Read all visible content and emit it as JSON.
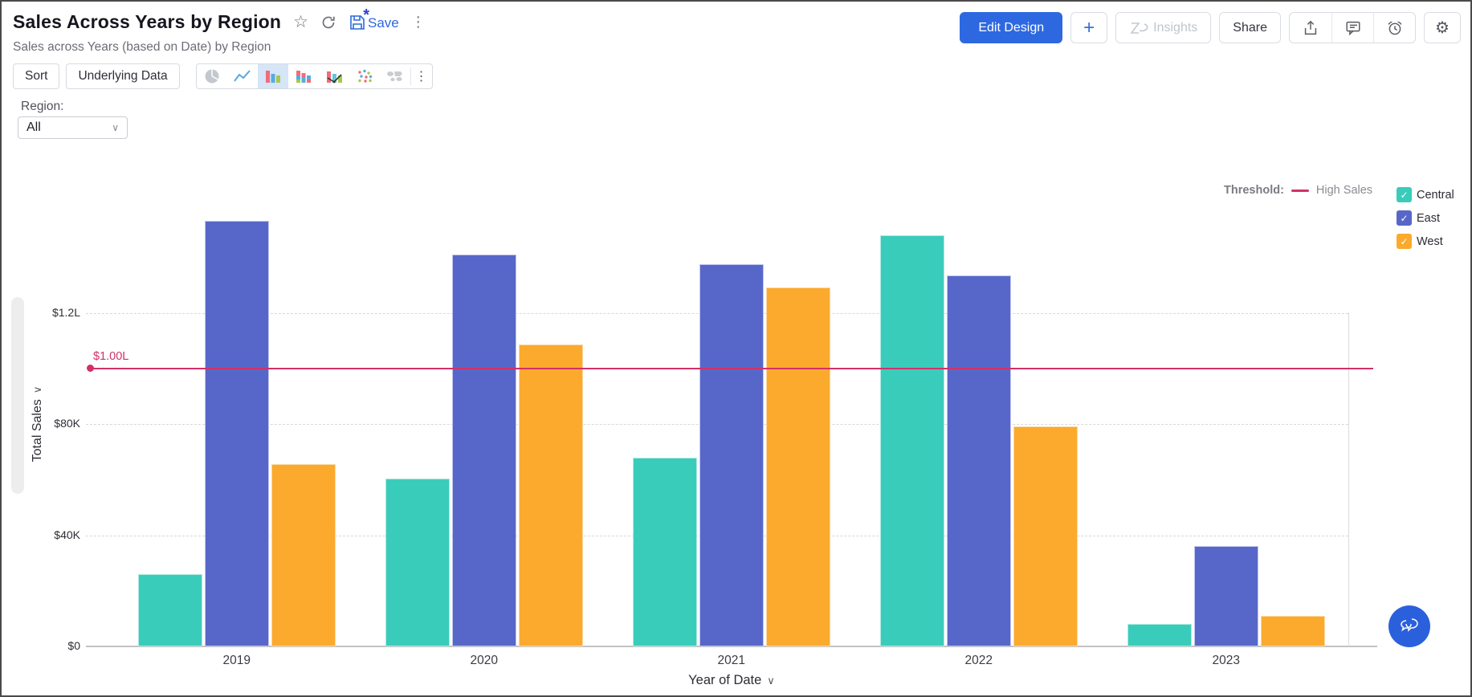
{
  "header": {
    "title": "Sales Across Years by Region",
    "subtitle": "Sales across Years (based on Date) by Region",
    "save_label": "Save"
  },
  "actions": {
    "edit_design": "Edit Design",
    "add": "+",
    "insights": "Insights",
    "share": "Share"
  },
  "toolbar": {
    "sort": "Sort",
    "underlying_data": "Underlying Data",
    "chart_types": [
      "pie",
      "line",
      "bar",
      "stacked-bar",
      "combo",
      "scatter",
      "map"
    ],
    "selected_chart_type": "bar"
  },
  "filter": {
    "label": "Region:",
    "value": "All"
  },
  "legend": {
    "threshold_label": "Threshold:"
  },
  "colors": {
    "accent_blue": "#2d68e1",
    "selected_chart_bg": "#d6e5f7",
    "fab_blue": "#2b60dd"
  },
  "chart_data": {
    "type": "bar",
    "grouping": "grouped",
    "categories": [
      "2019",
      "2020",
      "2021",
      "2022",
      "2023"
    ],
    "series": [
      {
        "name": "Central",
        "color": "#3accbb",
        "edge": "#aeeae1",
        "values": [
          26000,
          60500,
          68000,
          148000,
          8000
        ]
      },
      {
        "name": "East",
        "color": "#5767c9",
        "edge": "#c0c6ee",
        "values": [
          153000,
          141000,
          137500,
          133500,
          36000
        ]
      },
      {
        "name": "West",
        "color": "#fbaa2d",
        "edge": "#fdd7a0",
        "values": [
          65500,
          108500,
          129000,
          79000,
          11000
        ]
      }
    ],
    "xlabel": "Year of Date",
    "ylabel": "Total Sales",
    "y_ticks": [
      {
        "value": 0,
        "label": "$0"
      },
      {
        "value": 40000,
        "label": "$40K"
      },
      {
        "value": 80000,
        "label": "$80K"
      },
      {
        "value": 120000,
        "label": "$1.2L"
      }
    ],
    "ylim": [
      0,
      165000
    ],
    "grid": "horizontal-dashed",
    "legend_position": "right",
    "threshold": {
      "value": 100000,
      "label": "$1.00L",
      "name": "High Sales",
      "color": "#d23069"
    }
  }
}
